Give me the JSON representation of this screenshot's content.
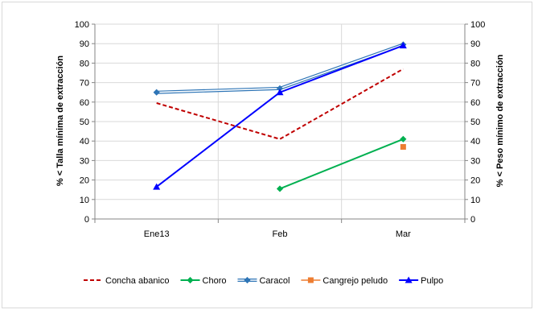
{
  "chart_data": {
    "type": "line",
    "categories": [
      "Ene13",
      "Feb",
      "Mar"
    ],
    "ylabel_left": "% < Talla mínima de extracción",
    "ylabel_right": "% < Peso mínimo de extracción",
    "ylim": [
      0,
      100
    ],
    "y2lim": [
      0,
      100
    ],
    "yticks": [
      "0",
      "10",
      "20",
      "30",
      "40",
      "50",
      "60",
      "70",
      "80",
      "90",
      "100"
    ],
    "grid": true,
    "legend_position": "bottom",
    "series": [
      {
        "name": "Concha abanico",
        "values": [
          59.5,
          41,
          77
        ],
        "color": "#c00000",
        "style": "dashed",
        "marker": "none"
      },
      {
        "name": "Choro",
        "values": [
          null,
          15.5,
          41
        ],
        "color": "#00b050",
        "style": "solid",
        "marker": "diamond"
      },
      {
        "name": "Caracol",
        "values": [
          65,
          67,
          89.5
        ],
        "color": "#2e75b6",
        "style": "double",
        "marker": "diamond"
      },
      {
        "name": "Cangrejo peludo",
        "values": [
          null,
          null,
          37
        ],
        "color": "#ed7d31",
        "style": "none",
        "marker": "square"
      },
      {
        "name": "Pulpo",
        "values": [
          16.5,
          65,
          89
        ],
        "color": "#0000ff",
        "style": "solid",
        "marker": "triangle"
      }
    ]
  }
}
